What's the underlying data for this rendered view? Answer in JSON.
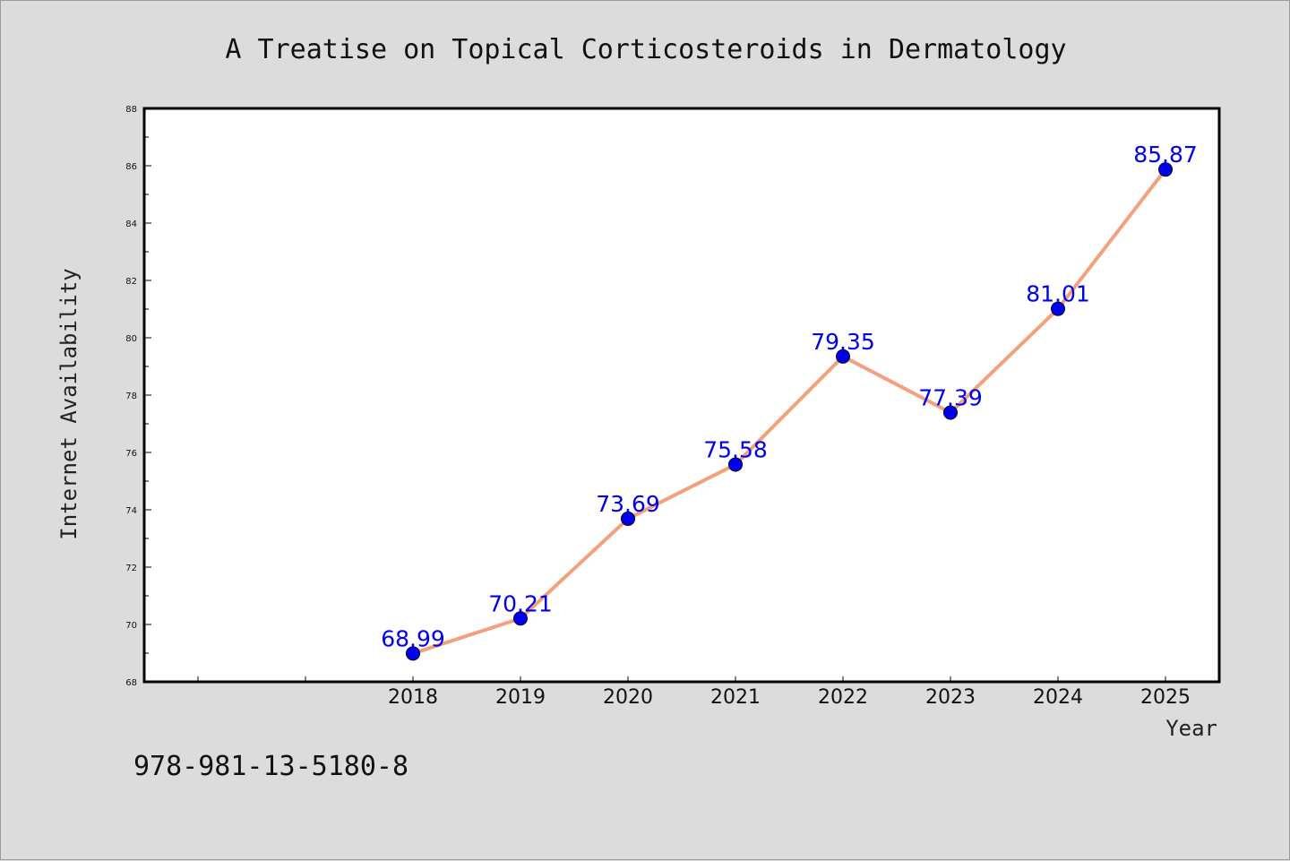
{
  "colors": {
    "line": "#f4a07c",
    "marker": "#0000ee",
    "label": "#0000ee",
    "background": "#dcdcdc",
    "plot_background": "#ffffff"
  },
  "footer": {
    "isbn": "978-981-13-5180-8"
  },
  "chart_data": {
    "type": "line",
    "title": "A Treatise on Topical Corticosteroids in Dermatology",
    "xlabel": "Year",
    "ylabel": "Internet Availability",
    "categories": [
      "2018",
      "2019",
      "2020",
      "2021",
      "2022",
      "2023",
      "2024",
      "2025"
    ],
    "series": [
      {
        "values": [
          68.99,
          70.21,
          73.69,
          75.58,
          79.35,
          77.39,
          81.01,
          85.87
        ],
        "data_labels": [
          "68.99",
          "70.21",
          "73.69",
          "75.58",
          "79.35",
          "77.39",
          "81.01",
          "85.87"
        ]
      }
    ],
    "ylim": [
      68,
      88
    ],
    "yticks": [
      68,
      70,
      72,
      74,
      76,
      78,
      80,
      82,
      84,
      86,
      88
    ],
    "xlim": [
      2015.5,
      2025.5
    ],
    "grid": false,
    "legend": "none"
  }
}
